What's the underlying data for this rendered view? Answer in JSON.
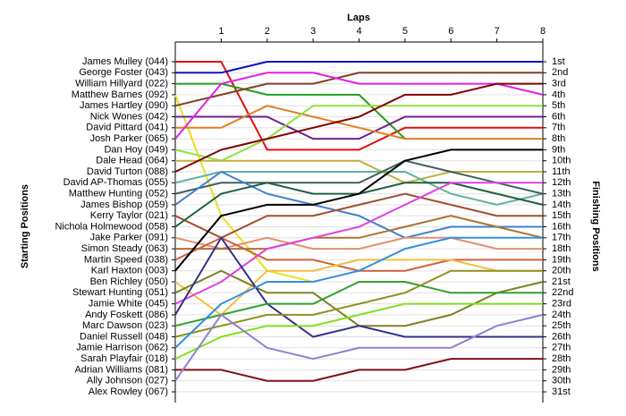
{
  "chart_data": {
    "type": "line",
    "xlabel": "Laps",
    "ylabel": "Starting Positions",
    "y2label": "Finishing Positions",
    "x": [
      0,
      1,
      2,
      3,
      4,
      5,
      6,
      7,
      8
    ],
    "xlim": [
      0,
      8
    ],
    "xticks": [
      1,
      2,
      3,
      4,
      5,
      6,
      7,
      8
    ],
    "ylim": [
      31,
      1
    ],
    "yticks": [
      {
        "value": 1,
        "label": "1st"
      },
      {
        "value": 2,
        "label": "2nd"
      },
      {
        "value": 3,
        "label": "3rd"
      },
      {
        "value": 4,
        "label": "4th"
      },
      {
        "value": 5,
        "label": "5th"
      },
      {
        "value": 6,
        "label": "6th"
      },
      {
        "value": 7,
        "label": "7th"
      },
      {
        "value": 8,
        "label": "8th"
      },
      {
        "value": 9,
        "label": "9th"
      },
      {
        "value": 10,
        "label": "10th"
      },
      {
        "value": 11,
        "label": "11th"
      },
      {
        "value": 12,
        "label": "12th"
      },
      {
        "value": 13,
        "label": "13th"
      },
      {
        "value": 14,
        "label": "14th"
      },
      {
        "value": 15,
        "label": "15th"
      },
      {
        "value": 16,
        "label": "16th"
      },
      {
        "value": 17,
        "label": "17th"
      },
      {
        "value": 18,
        "label": "18th"
      },
      {
        "value": 19,
        "label": "19th"
      },
      {
        "value": 20,
        "label": "20th"
      },
      {
        "value": 21,
        "label": "21st"
      },
      {
        "value": 22,
        "label": "22nd"
      },
      {
        "value": 23,
        "label": "23rd"
      },
      {
        "value": 24,
        "label": "24th"
      },
      {
        "value": 25,
        "label": "25th"
      },
      {
        "value": 26,
        "label": "26th"
      },
      {
        "value": 27,
        "label": "27th"
      },
      {
        "value": 28,
        "label": "28th"
      },
      {
        "value": 29,
        "label": "29th"
      },
      {
        "value": 30,
        "label": "30th"
      },
      {
        "value": 31,
        "label": "31st"
      }
    ],
    "grid": true,
    "series": [
      {
        "name": "James Mulley (044)",
        "color": "#e01010",
        "values": [
          1,
          1,
          9,
          9,
          9,
          7,
          7,
          7,
          7
        ]
      },
      {
        "name": "George Foster (043)",
        "color": "#1010c0",
        "values": [
          2,
          2,
          1,
          1,
          1,
          1,
          1,
          1,
          1
        ]
      },
      {
        "name": "William Hillyard (022)",
        "color": "#20a020",
        "values": [
          3,
          3,
          4,
          4,
          4,
          8,
          null,
          null,
          null
        ]
      },
      {
        "name": "Matthew Barnes (092)",
        "color": "#e8e020",
        "values": [
          4,
          15,
          20,
          21,
          null,
          null,
          null,
          null,
          null
        ]
      },
      {
        "name": "James Hartley (090)",
        "color": "#804020",
        "values": [
          5,
          4,
          3,
          3,
          2,
          2,
          2,
          2,
          2
        ]
      },
      {
        "name": "Nick Wones (042)",
        "color": "#702090",
        "values": [
          6,
          6,
          6,
          8,
          8,
          6,
          6,
          6,
          6
        ]
      },
      {
        "name": "David Pittard (041)",
        "color": "#e08020",
        "values": [
          7,
          7,
          5,
          6,
          7,
          8,
          8,
          8,
          8
        ]
      },
      {
        "name": "Josh Parker (065)",
        "color": "#e020e0",
        "values": [
          8,
          3,
          2,
          2,
          3,
          3,
          3,
          3,
          4
        ]
      },
      {
        "name": "Dan Hoy (049)",
        "color": "#90e040",
        "values": [
          9,
          10,
          8,
          5,
          5,
          5,
          5,
          5,
          5
        ]
      },
      {
        "name": "Dale Head (064)",
        "color": "#c0b040",
        "values": [
          10,
          10,
          10,
          10,
          10,
          12,
          11,
          11,
          11
        ]
      },
      {
        "name": "David Turton (088)",
        "color": "#800000",
        "values": [
          11,
          9,
          8,
          7,
          6,
          4,
          4,
          3,
          3
        ]
      },
      {
        "name": "David AP-Thomas (055)",
        "color": "#60b0a0",
        "values": [
          12,
          11,
          11,
          11,
          11,
          11,
          13,
          14,
          13
        ]
      },
      {
        "name": "Matthew Hunting (052)",
        "color": "#406060",
        "values": [
          13,
          12,
          12,
          12,
          12,
          10,
          11,
          12,
          13
        ]
      },
      {
        "name": "James Bishop (059)",
        "color": "#4080d0",
        "values": [
          14,
          11,
          13,
          14,
          15,
          17,
          16,
          16,
          16
        ]
      },
      {
        "name": "Kerry Taylor (021)",
        "color": "#a05030",
        "values": [
          15,
          17,
          15,
          15,
          14,
          13,
          14,
          15,
          15
        ]
      },
      {
        "name": "Nichola Holmewood (058)",
        "color": "#206040",
        "values": [
          16,
          13,
          12,
          13,
          13,
          12,
          12,
          13,
          14
        ]
      },
      {
        "name": "Jake Parker (091)",
        "color": "#e09070",
        "values": [
          17,
          18,
          17,
          18,
          18,
          17,
          17,
          18,
          18
        ]
      },
      {
        "name": "Simon Steady (063)",
        "color": "#b07030",
        "values": [
          18,
          18,
          18,
          17,
          17,
          16,
          15,
          16,
          17
        ]
      },
      {
        "name": "Martin Speed (038)",
        "color": "#d06040",
        "values": [
          19,
          17,
          19,
          19,
          20,
          20,
          19,
          19,
          19
        ]
      },
      {
        "name": "Karl Haxton (003)",
        "color": "#000000",
        "values": [
          20,
          15,
          14,
          14,
          13,
          10,
          9,
          9,
          9
        ]
      },
      {
        "name": "Ben Richley (050)",
        "color": "#f0c040",
        "values": [
          21,
          24,
          20,
          20,
          19,
          19,
          19,
          20,
          20
        ]
      },
      {
        "name": "Stewart Hunting (051)",
        "color": "#808020",
        "values": [
          22,
          20,
          22,
          22,
          25,
          25,
          24,
          22,
          21
        ]
      },
      {
        "name": "Jamie White (045)",
        "color": "#e040e0",
        "values": [
          23,
          21,
          18,
          17,
          16,
          14,
          12,
          12,
          12
        ]
      },
      {
        "name": "Andy Foskett (086)",
        "color": "#303090",
        "values": [
          24,
          17,
          23,
          26,
          25,
          26,
          26,
          26,
          26
        ]
      },
      {
        "name": "Marc Dawson (023)",
        "color": "#30a030",
        "values": [
          25,
          24,
          23,
          23,
          21,
          21,
          22,
          22,
          22
        ]
      },
      {
        "name": "Daniel Russell (048)",
        "color": "#909020",
        "values": [
          26,
          25,
          24,
          24,
          23,
          22,
          20,
          20,
          20
        ]
      },
      {
        "name": "Jamie Harrison (062)",
        "color": "#3090e0",
        "values": [
          27,
          23,
          21,
          21,
          20,
          18,
          17,
          17,
          17
        ]
      },
      {
        "name": "Sarah Playfair (018)",
        "color": "#80e020",
        "values": [
          28,
          26,
          25,
          25,
          24,
          23,
          23,
          23,
          23
        ]
      },
      {
        "name": "Adrian Williams (081)",
        "color": "#801010",
        "values": [
          29,
          29,
          30,
          30,
          29,
          29,
          28,
          28,
          28
        ]
      },
      {
        "name": "Ally Johnson (027)",
        "color": "#9080d0",
        "values": [
          30,
          24,
          27,
          28,
          27,
          27,
          27,
          25,
          24
        ]
      },
      {
        "name": "Alex Rowley (067)",
        "color": "#888888",
        "values": [
          31,
          null,
          null,
          null,
          null,
          null,
          null,
          null,
          null
        ]
      }
    ]
  }
}
